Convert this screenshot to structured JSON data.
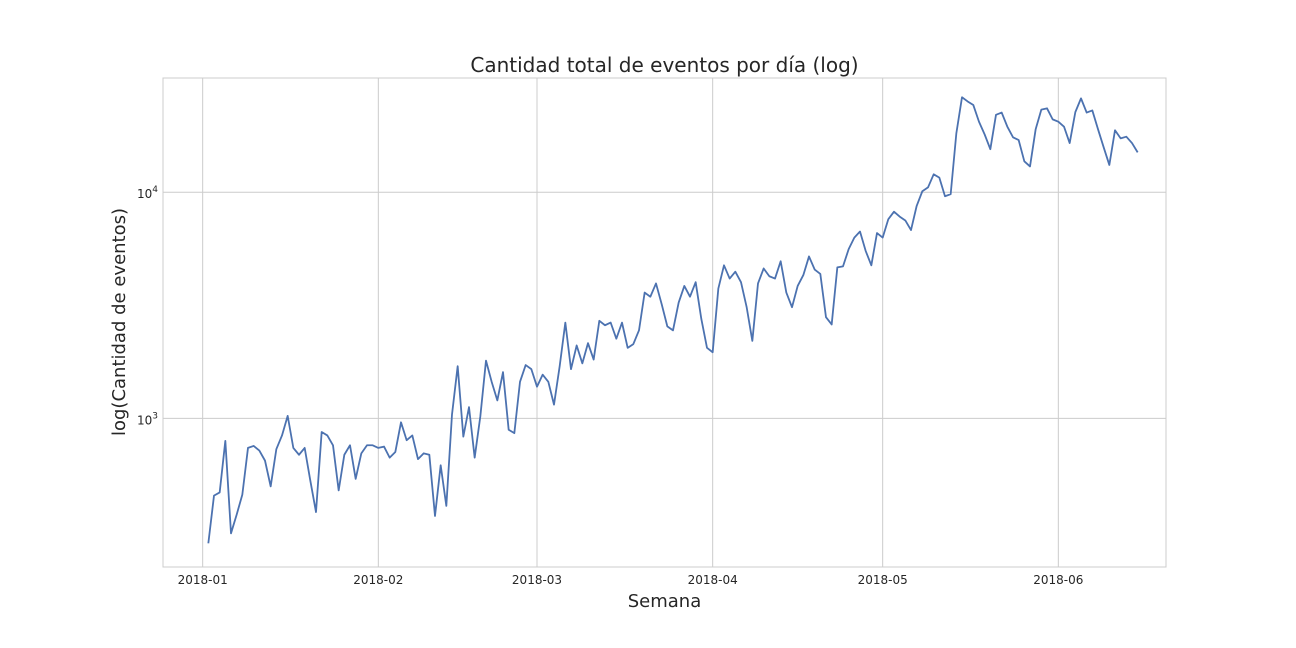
{
  "chart_data": {
    "type": "line",
    "title": "Cantidad total de eventos por día (log)",
    "xlabel": "Semana",
    "ylabel": "log(Cantidad de eventos)",
    "yscale": "log",
    "grid": true,
    "line_color": "#4c72b0",
    "xlim": [
      "2017-12-25",
      "2018-06-20"
    ],
    "ylim": [
      220,
      32000
    ],
    "x_ticks": [
      {
        "date": "2018-01-01",
        "label": "2018-01"
      },
      {
        "date": "2018-02-01",
        "label": "2018-02"
      },
      {
        "date": "2018-03-01",
        "label": "2018-03"
      },
      {
        "date": "2018-04-01",
        "label": "2018-04"
      },
      {
        "date": "2018-05-01",
        "label": "2018-05"
      },
      {
        "date": "2018-06-01",
        "label": "2018-06"
      }
    ],
    "y_ticks": [
      {
        "value": 1000,
        "base": "10",
        "exp": "3"
      },
      {
        "value": 10000,
        "base": "10",
        "exp": "4"
      }
    ],
    "x": [
      "2018-01-02",
      "2018-01-03",
      "2018-01-04",
      "2018-01-05",
      "2018-01-06",
      "2018-01-07",
      "2018-01-08",
      "2018-01-09",
      "2018-01-10",
      "2018-01-11",
      "2018-01-12",
      "2018-01-13",
      "2018-01-14",
      "2018-01-15",
      "2018-01-16",
      "2018-01-17",
      "2018-01-18",
      "2018-01-19",
      "2018-01-20",
      "2018-01-21",
      "2018-01-22",
      "2018-01-23",
      "2018-01-24",
      "2018-01-25",
      "2018-01-26",
      "2018-01-27",
      "2018-01-28",
      "2018-01-29",
      "2018-01-30",
      "2018-01-31",
      "2018-02-01",
      "2018-02-02",
      "2018-02-03",
      "2018-02-04",
      "2018-02-05",
      "2018-02-06",
      "2018-02-07",
      "2018-02-08",
      "2018-02-09",
      "2018-02-10",
      "2018-02-11",
      "2018-02-12",
      "2018-02-13",
      "2018-02-14",
      "2018-02-15",
      "2018-02-16",
      "2018-02-17",
      "2018-02-18",
      "2018-02-19",
      "2018-02-20",
      "2018-02-21",
      "2018-02-22",
      "2018-02-23",
      "2018-02-24",
      "2018-02-25",
      "2018-02-26",
      "2018-02-27",
      "2018-02-28",
      "2018-03-01",
      "2018-03-02",
      "2018-03-03",
      "2018-03-04",
      "2018-03-05",
      "2018-03-06",
      "2018-03-07",
      "2018-03-08",
      "2018-03-09",
      "2018-03-10",
      "2018-03-11",
      "2018-03-12",
      "2018-03-13",
      "2018-03-14",
      "2018-03-15",
      "2018-03-16",
      "2018-03-17",
      "2018-03-18",
      "2018-03-19",
      "2018-03-20",
      "2018-03-21",
      "2018-03-22",
      "2018-03-23",
      "2018-03-24",
      "2018-03-25",
      "2018-03-26",
      "2018-03-27",
      "2018-03-28",
      "2018-03-29",
      "2018-03-30",
      "2018-03-31",
      "2018-04-01",
      "2018-04-02",
      "2018-04-03",
      "2018-04-04",
      "2018-04-05",
      "2018-04-06",
      "2018-04-07",
      "2018-04-08",
      "2018-04-09",
      "2018-04-10",
      "2018-04-11",
      "2018-04-12",
      "2018-04-13",
      "2018-04-14",
      "2018-04-15",
      "2018-04-16",
      "2018-04-17",
      "2018-04-18",
      "2018-04-19",
      "2018-04-20",
      "2018-04-21",
      "2018-04-22",
      "2018-04-23",
      "2018-04-24",
      "2018-04-25",
      "2018-04-26",
      "2018-04-27",
      "2018-04-28",
      "2018-04-29",
      "2018-04-30",
      "2018-05-01",
      "2018-05-02",
      "2018-05-03",
      "2018-05-04",
      "2018-05-05",
      "2018-05-06",
      "2018-05-07",
      "2018-05-08",
      "2018-05-09",
      "2018-05-10",
      "2018-05-11",
      "2018-05-12",
      "2018-05-13",
      "2018-05-14",
      "2018-05-15",
      "2018-05-16",
      "2018-05-17",
      "2018-05-18",
      "2018-05-19",
      "2018-05-20",
      "2018-05-21",
      "2018-05-22",
      "2018-05-23",
      "2018-05-24",
      "2018-05-25",
      "2018-05-26",
      "2018-05-27",
      "2018-05-28",
      "2018-05-29",
      "2018-05-30",
      "2018-05-31",
      "2018-06-01",
      "2018-06-02",
      "2018-06-03",
      "2018-06-04",
      "2018-06-05",
      "2018-06-06",
      "2018-06-07",
      "2018-06-08",
      "2018-06-09",
      "2018-06-10",
      "2018-06-11",
      "2018-06-12",
      "2018-06-13",
      "2018-06-14",
      "2018-06-15"
    ],
    "values": [
      280,
      455,
      470,
      795,
      310,
      375,
      460,
      740,
      755,
      720,
      650,
      500,
      730,
      840,
      1025,
      740,
      690,
      740,
      530,
      385,
      870,
      840,
      760,
      480,
      690,
      760,
      540,
      700,
      760,
      760,
      740,
      750,
      670,
      710,
      960,
      800,
      840,
      660,
      700,
      690,
      370,
      620,
      410,
      1040,
      1700,
      830,
      1120,
      670,
      1020,
      1800,
      1450,
      1200,
      1600,
      890,
      860,
      1450,
      1720,
      1650,
      1380,
      1560,
      1450,
      1150,
      1700,
      2650,
      1650,
      2100,
      1750,
      2150,
      1820,
      2700,
      2580,
      2650,
      2250,
      2650,
      2050,
      2130,
      2450,
      3600,
      3450,
      3950,
      3200,
      2550,
      2450,
      3250,
      3850,
      3450,
      4000,
      2750,
      2050,
      1960,
      3750,
      4750,
      4150,
      4450,
      4000,
      3100,
      2200,
      3950,
      4600,
      4250,
      4150,
      4950,
      3600,
      3100,
      3850,
      4300,
      5200,
      4550,
      4350,
      2800,
      2600,
      4650,
      4700,
      5600,
      6300,
      6700,
      5500,
      4750,
      6600,
      6300,
      7600,
      8200,
      7800,
      7500,
      6800,
      8700,
      10100,
      10500,
      12000,
      11600,
      9600,
      9800,
      18200,
      26300,
      25200,
      24300,
      20500,
      18000,
      15500,
      22000,
      22500,
      19500,
      17500,
      17000,
      13700,
      13000,
      19000,
      23200,
      23500,
      21000,
      20500,
      19500,
      16500,
      22600,
      26000,
      22500,
      23000,
      19000,
      15800,
      13200,
      18800,
      17300,
      17600,
      16500,
      15000
    ]
  }
}
